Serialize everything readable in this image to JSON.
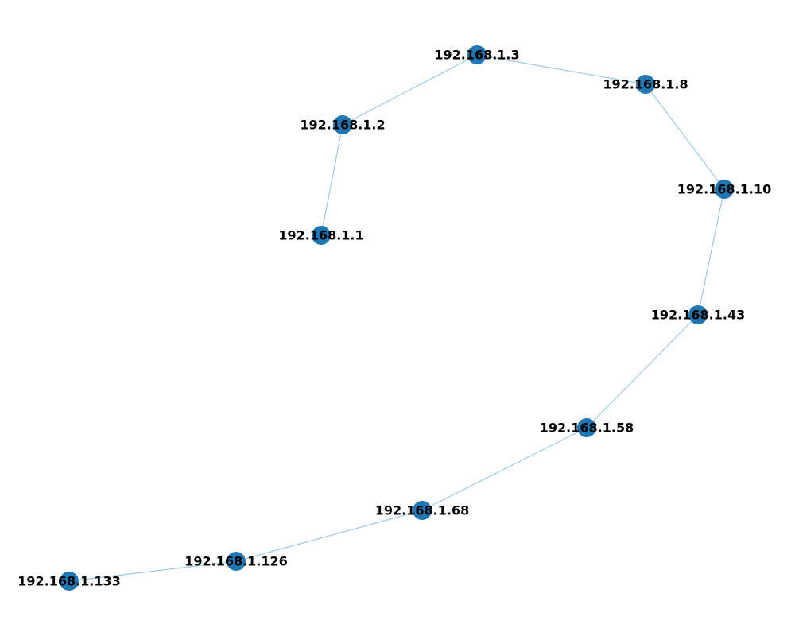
{
  "graph": {
    "edge_color": "#9ecae1",
    "node_color": "#1f77b4",
    "label_color": "#000000",
    "nodes": [
      {
        "id": "n1",
        "label": "192.168.1.1"
      },
      {
        "id": "n2",
        "label": "192.168.1.2"
      },
      {
        "id": "n3",
        "label": "192.168.1.3"
      },
      {
        "id": "n4",
        "label": "192.168.1.8"
      },
      {
        "id": "n5",
        "label": "192.168.1.10"
      },
      {
        "id": "n6",
        "label": "192.168.1.43"
      },
      {
        "id": "n7",
        "label": "192.168.1.58"
      },
      {
        "id": "n8",
        "label": "192.168.1.68"
      },
      {
        "id": "n9",
        "label": "192.168.1.126"
      },
      {
        "id": "n10",
        "label": "192.168.1.133"
      }
    ],
    "edges": [
      {
        "from": "n1",
        "to": "n2"
      },
      {
        "from": "n2",
        "to": "n3"
      },
      {
        "from": "n3",
        "to": "n4"
      },
      {
        "from": "n4",
        "to": "n5"
      },
      {
        "from": "n5",
        "to": "n6"
      },
      {
        "from": "n6",
        "to": "n7"
      },
      {
        "from": "n7",
        "to": "n8"
      },
      {
        "from": "n8",
        "to": "n9"
      },
      {
        "from": "n9",
        "to": "n10"
      }
    ]
  }
}
